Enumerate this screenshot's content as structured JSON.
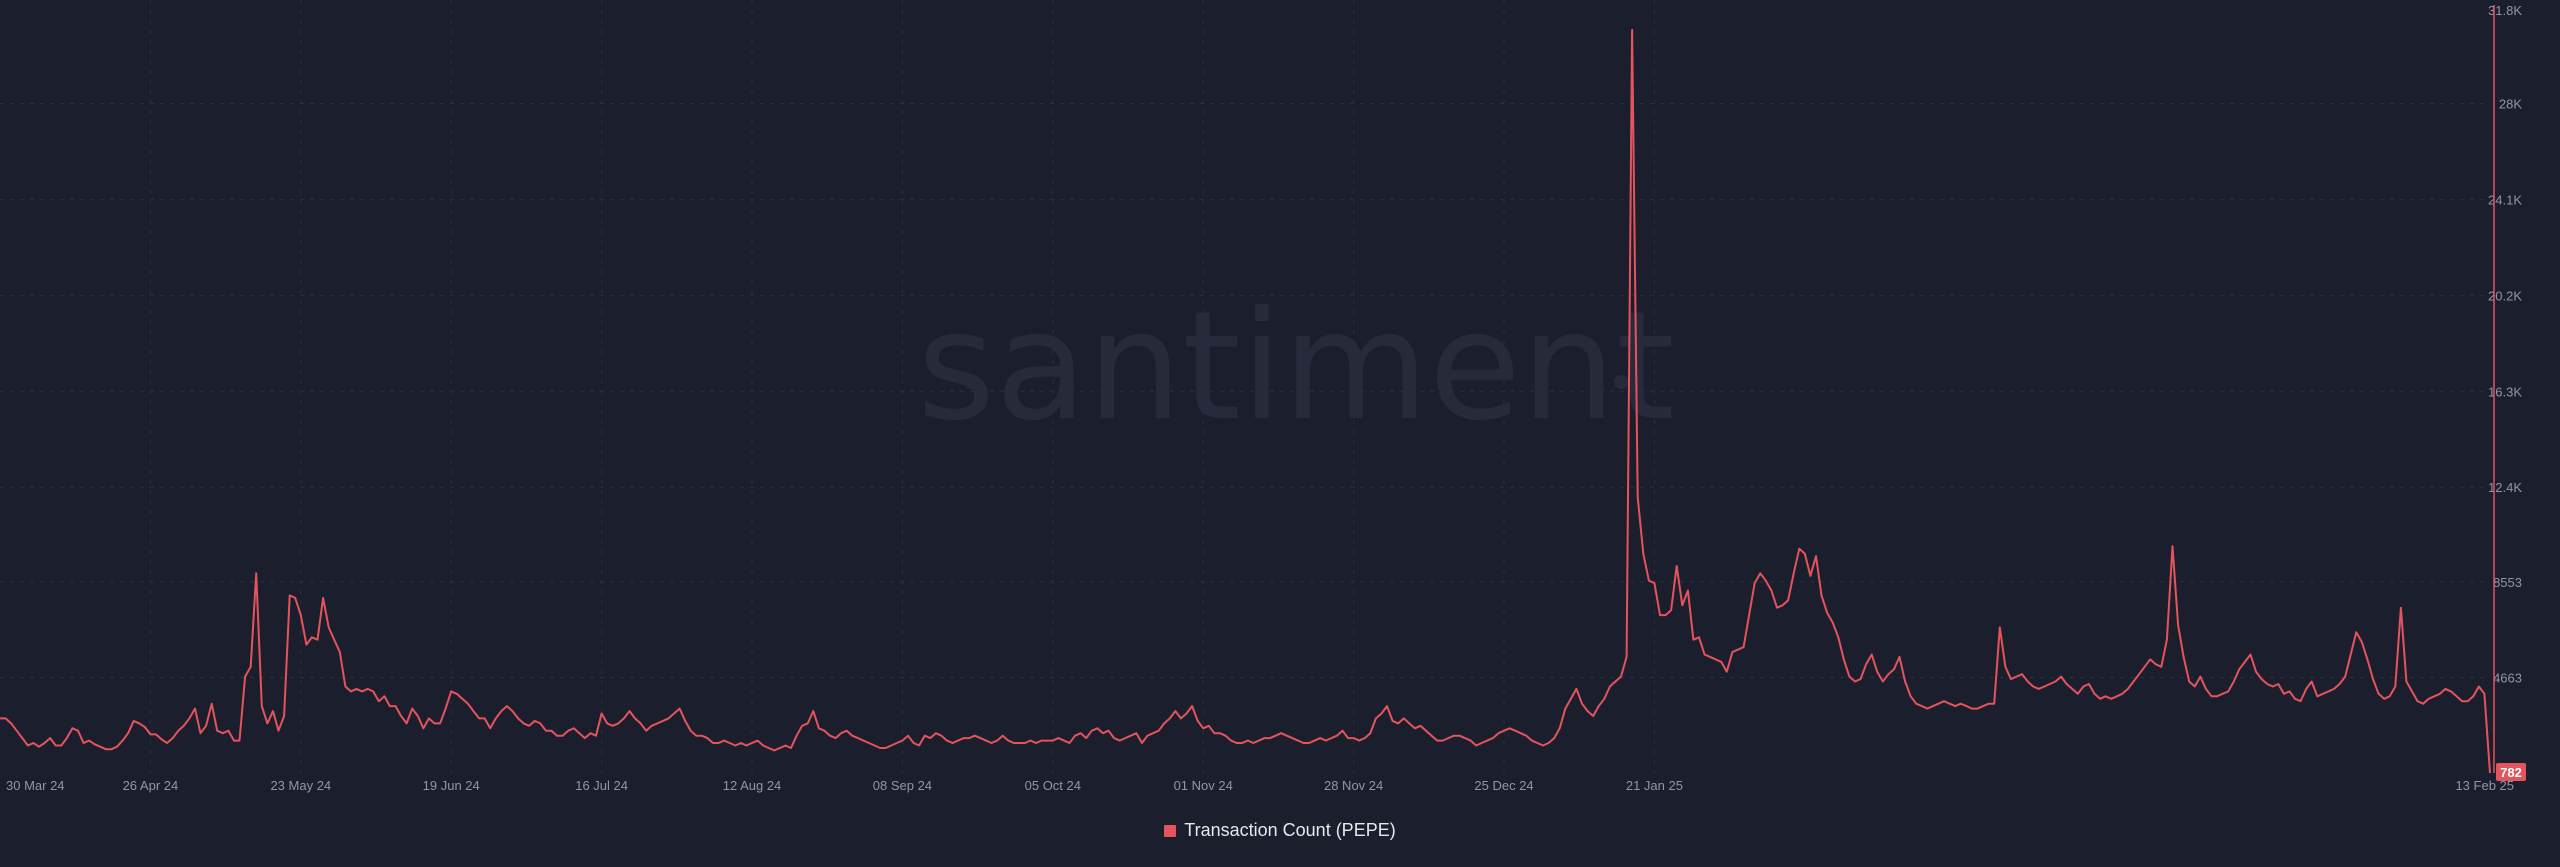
{
  "chart_data": {
    "type": "line",
    "watermark": "santiment",
    "series": [
      {
        "name": "Transaction Count (PEPE)",
        "color": "#e3545c",
        "values": [
          3000,
          3000,
          2800,
          2500,
          2200,
          1900,
          2000,
          1850,
          2000,
          2200,
          1900,
          1900,
          2200,
          2600,
          2500,
          2000,
          2100,
          1950,
          1850,
          1750,
          1750,
          1850,
          2100,
          2400,
          2900,
          2800,
          2650,
          2350,
          2350,
          2150,
          2000,
          2200,
          2500,
          2700,
          3000,
          3400,
          2400,
          2700,
          3600,
          2500,
          2400,
          2500,
          2100,
          2100,
          4700,
          5100,
          8900,
          3500,
          2800,
          3300,
          2500,
          3100,
          8000,
          7900,
          7200,
          6000,
          6300,
          6200,
          7900,
          6700,
          6200,
          5700,
          4300,
          4100,
          4200,
          4100,
          4200,
          4100,
          3700,
          3900,
          3500,
          3500,
          3100,
          2800,
          3400,
          3100,
          2600,
          3000,
          2800,
          2800,
          3400,
          4100,
          4000,
          3800,
          3600,
          3300,
          3000,
          3000,
          2600,
          3000,
          3300,
          3500,
          3300,
          3000,
          2800,
          2700,
          2900,
          2800,
          2500,
          2500,
          2300,
          2300,
          2500,
          2600,
          2400,
          2200,
          2400,
          2300,
          3200,
          2800,
          2700,
          2800,
          3000,
          3300,
          3000,
          2800,
          2500,
          2700,
          2800,
          2900,
          3000,
          3200,
          3400,
          2900,
          2500,
          2300,
          2300,
          2200,
          2000,
          2000,
          2100,
          2000,
          1900,
          2000,
          1900,
          2000,
          2100,
          1900,
          1800,
          1700,
          1800,
          1900,
          1800,
          2300,
          2700,
          2800,
          3300,
          2600,
          2500,
          2300,
          2200,
          2400,
          2500,
          2300,
          2200,
          2100,
          2000,
          1900,
          1800,
          1800,
          1900,
          2000,
          2100,
          2300,
          2000,
          1900,
          2300,
          2200,
          2400,
          2300,
          2100,
          2000,
          2100,
          2200,
          2200,
          2300,
          2200,
          2100,
          2000,
          2100,
          2300,
          2100,
          2000,
          2000,
          2000,
          2100,
          2000,
          2100,
          2100,
          2100,
          2200,
          2100,
          2000,
          2300,
          2400,
          2200,
          2500,
          2600,
          2400,
          2500,
          2200,
          2100,
          2200,
          2300,
          2400,
          2000,
          2300,
          2400,
          2500,
          2800,
          3000,
          3300,
          3000,
          3200,
          3500,
          2900,
          2600,
          2700,
          2400,
          2400,
          2300,
          2100,
          2000,
          2000,
          2100,
          2000,
          2100,
          2200,
          2200,
          2300,
          2400,
          2300,
          2200,
          2100,
          2000,
          2000,
          2100,
          2200,
          2100,
          2200,
          2300,
          2500,
          2200,
          2200,
          2100,
          2200,
          2400,
          3000,
          3200,
          3500,
          2900,
          2800,
          3000,
          2800,
          2600,
          2700,
          2500,
          2300,
          2100,
          2100,
          2200,
          2300,
          2300,
          2200,
          2100,
          1900,
          2000,
          2100,
          2200,
          2400,
          2500,
          2600,
          2500,
          2400,
          2300,
          2100,
          2000,
          1900,
          2000,
          2200,
          2600,
          3400,
          3800,
          4200,
          3600,
          3300,
          3100,
          3500,
          3800,
          4300,
          4500,
          4700,
          5500,
          31000,
          12000,
          9700,
          8600,
          8500,
          7200,
          7200,
          7400,
          9200,
          7600,
          8200,
          6200,
          6300,
          5600,
          5500,
          5400,
          5300,
          4900,
          5700,
          5800,
          5900,
          7200,
          8500,
          8900,
          8600,
          8200,
          7500,
          7600,
          7800,
          8900,
          9900,
          9700,
          8800,
          9600,
          8000,
          7300,
          6900,
          6300,
          5400,
          4700,
          4500,
          4600,
          5200,
          5600,
          4900,
          4500,
          4800,
          5000,
          5500,
          4500,
          3900,
          3600,
          3500,
          3400,
          3500,
          3600,
          3700,
          3600,
          3500,
          3600,
          3500,
          3400,
          3400,
          3500,
          3600,
          3600,
          6700,
          5100,
          4600,
          4700,
          4800,
          4500,
          4300,
          4200,
          4300,
          4400,
          4500,
          4700,
          4400,
          4200,
          4000,
          4300,
          4400,
          4000,
          3800,
          3900,
          3800,
          3900,
          4000,
          4200,
          4500,
          4800,
          5100,
          5400,
          5200,
          5100,
          6200,
          10000,
          6800,
          5500,
          4500,
          4300,
          4700,
          4200,
          3900,
          3900,
          4000,
          4100,
          4500,
          5000,
          5300,
          5600,
          4900,
          4600,
          4400,
          4300,
          4400,
          4000,
          4100,
          3800,
          3700,
          4200,
          4500,
          3900,
          4000,
          4100,
          4200,
          4400,
          4700,
          5600,
          6500,
          6100,
          5400,
          4600,
          4000,
          3800,
          3900,
          4300,
          7500,
          4500,
          4100,
          3700,
          3600,
          3800,
          3900,
          4000,
          4200,
          4100,
          3900,
          3700,
          3700,
          3900,
          4300,
          4000,
          782
        ]
      }
    ],
    "x_tick_labels": [
      "30 Mar 24",
      "26 Apr 24",
      "23 May 24",
      "19 Jun 24",
      "16 Jul 24",
      "12 Aug 24",
      "08 Sep 24",
      "05 Oct 24",
      "01 Nov 24",
      "28 Nov 24",
      "25 Dec 24",
      "21 Jan 25",
      "13 Feb 25"
    ],
    "y_tick_labels": [
      "31.8K",
      "28K",
      "24.1K",
      "20.2K",
      "16.3K",
      "12.4K",
      "8553",
      "4663",
      "782"
    ],
    "y_ticks": [
      31800,
      28000,
      24100,
      20200,
      16300,
      12400,
      8553,
      4663,
      782
    ],
    "ylim": [
      782,
      31800
    ],
    "last_value_label": "782",
    "grid": true,
    "legend_position": "bottom-center",
    "background_color": "#1b1e2d"
  }
}
